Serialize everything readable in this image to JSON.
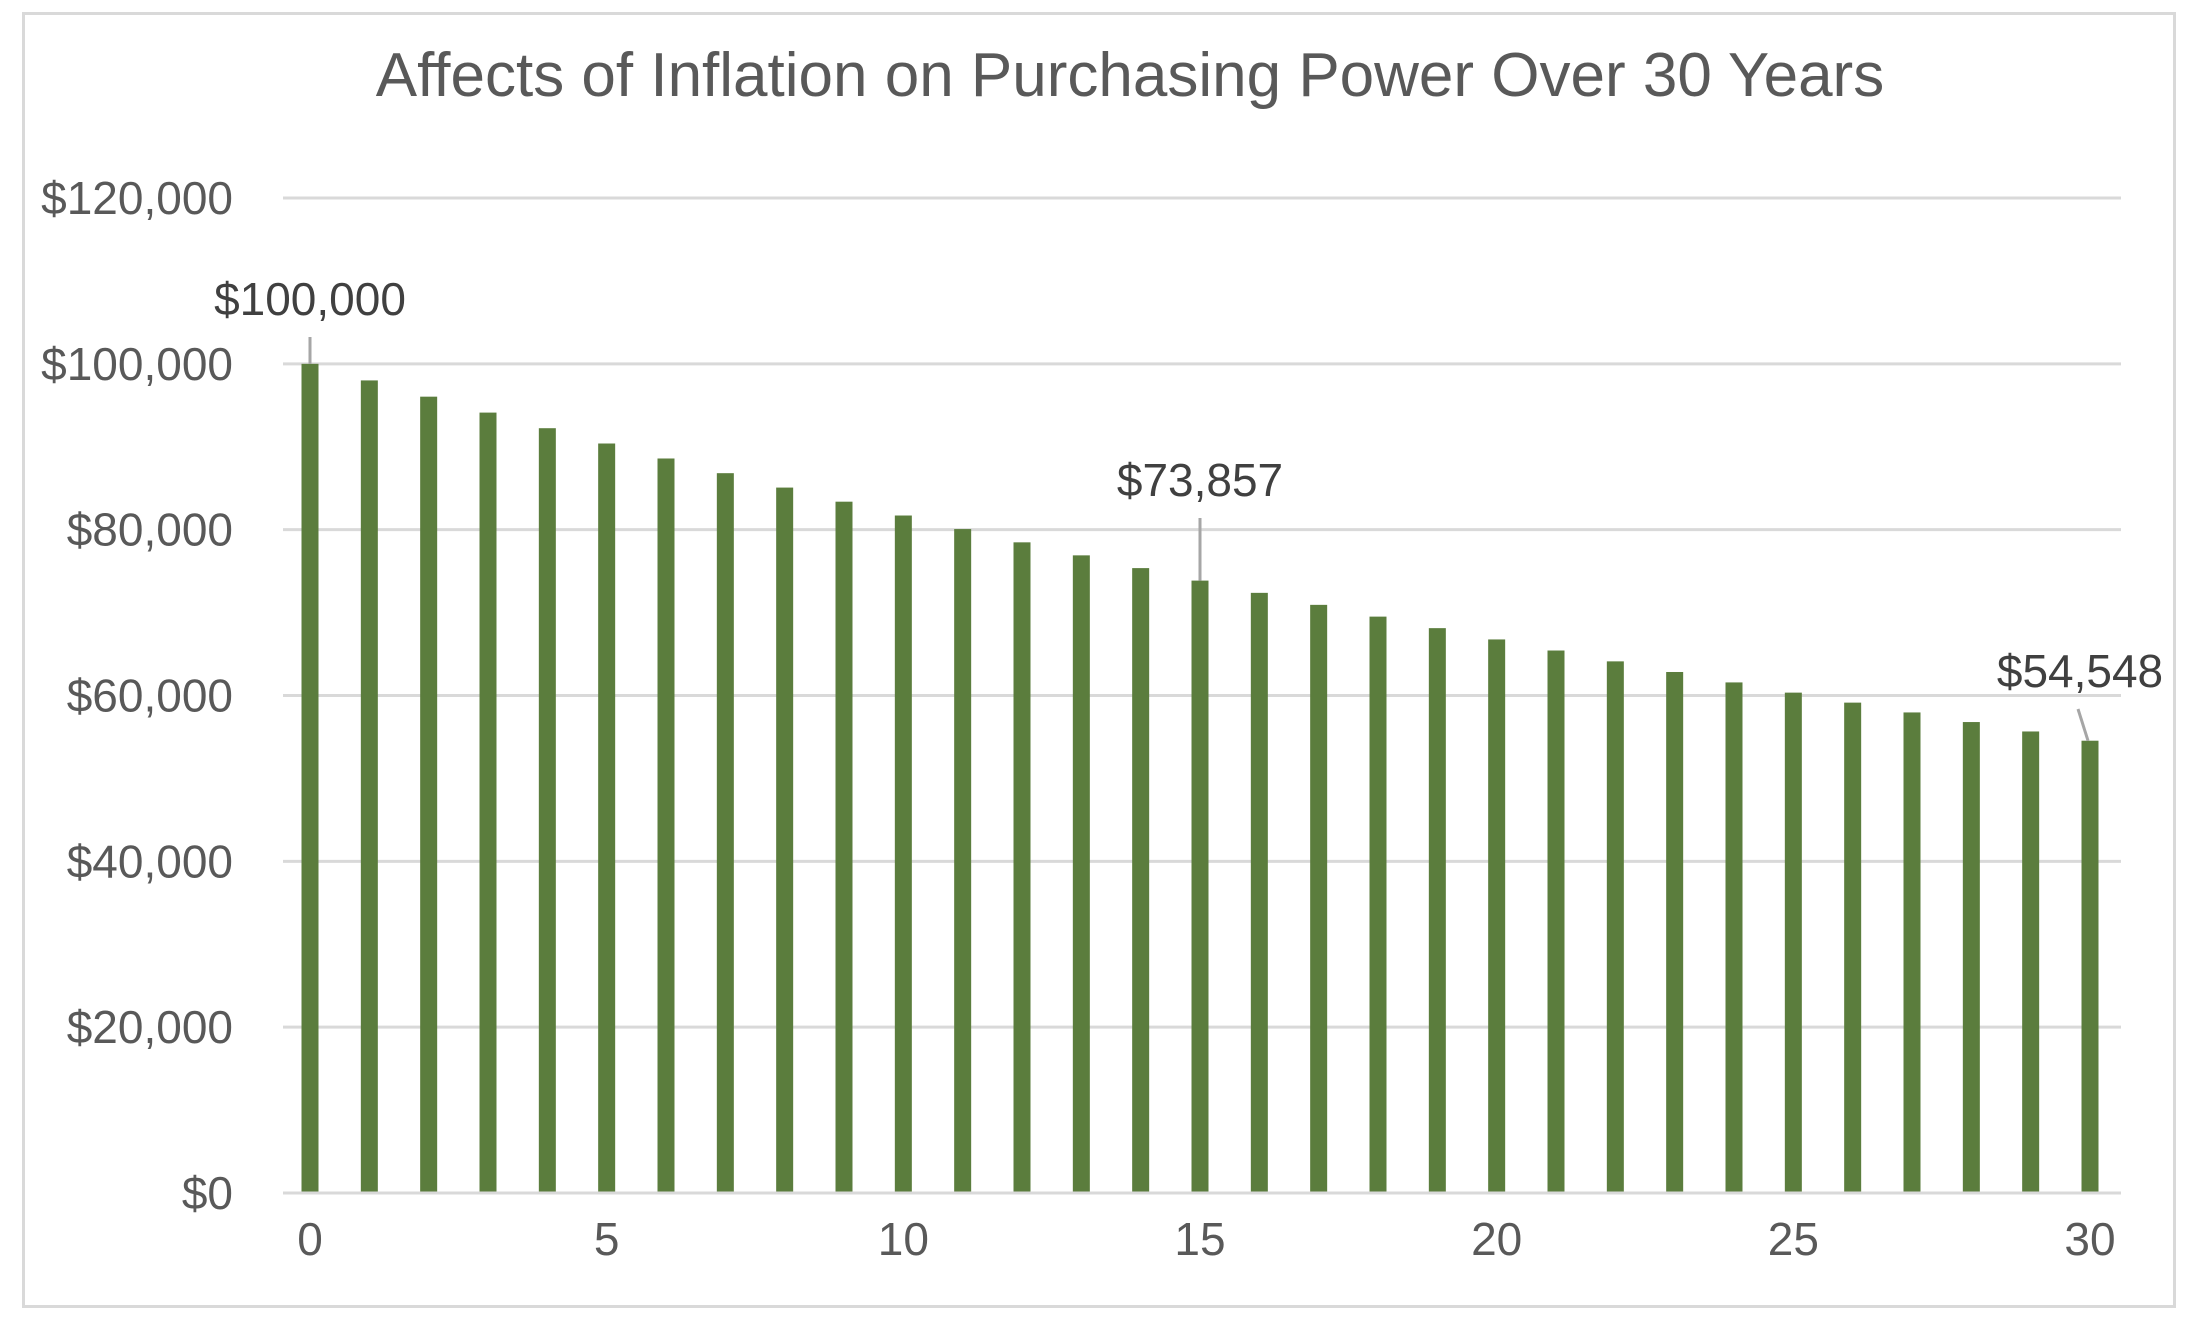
{
  "chart_data": {
    "type": "bar",
    "title": "Affects of Inflation on Purchasing Power Over 30 Years",
    "xlabel": "",
    "ylabel": "",
    "categories": [
      0,
      1,
      2,
      3,
      4,
      5,
      6,
      7,
      8,
      9,
      10,
      11,
      12,
      13,
      14,
      15,
      16,
      17,
      18,
      19,
      20,
      21,
      22,
      23,
      24,
      25,
      26,
      27,
      28,
      29,
      30
    ],
    "values": [
      100000,
      98000,
      96040,
      94119,
      92237,
      90392,
      88584,
      86813,
      85076,
      83375,
      81707,
      80073,
      78472,
      76902,
      75364,
      73857,
      72380,
      70932,
      69513,
      68123,
      66761,
      65426,
      64117,
      62835,
      61578,
      60346,
      59140,
      57957,
      56798,
      55662,
      54548
    ],
    "ylim": [
      0,
      120000
    ],
    "y_ticks": [
      0,
      20000,
      40000,
      60000,
      80000,
      100000,
      120000
    ],
    "y_tick_labels": [
      "$0",
      "$20,000",
      "$40,000",
      "$60,000",
      "$80,000",
      "$100,000",
      "$120,000"
    ],
    "x_ticks": [
      0,
      5,
      10,
      15,
      20,
      25,
      30
    ],
    "x_tick_labels": [
      "0",
      "5",
      "10",
      "15",
      "20",
      "25",
      "30"
    ],
    "data_labels": [
      {
        "index": 0,
        "text": "$100,000"
      },
      {
        "index": 15,
        "text": "$73,857"
      },
      {
        "index": 30,
        "text": "$54,548"
      }
    ],
    "grid": true,
    "legend": "none",
    "colors": {
      "bar": "#5b7d3d",
      "grid": "#d9d9d9",
      "text": "#595959",
      "label_text": "#404040",
      "leader_line": "#a6a6a6",
      "frame": "#d9d9d9"
    }
  }
}
